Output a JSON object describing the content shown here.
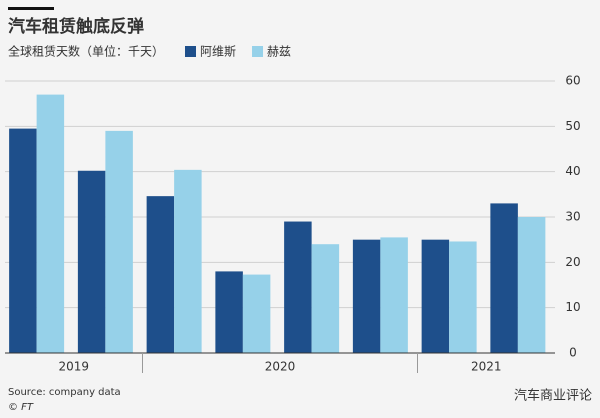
{
  "chart_data": {
    "type": "bar",
    "title": "汽车租赁触底反弹",
    "subtitle": "全球租赁天数（单位：千天）",
    "categories": [
      null,
      null,
      null,
      null,
      null,
      null,
      null,
      null
    ],
    "category_groups": [
      {
        "label": "2019",
        "size": 2
      },
      {
        "label": "2020",
        "size": 4
      },
      {
        "label": "2021",
        "size": 2
      }
    ],
    "series": [
      {
        "name": "阿维斯",
        "color": "#1e4f8b",
        "values": [
          49.5,
          40.2,
          34.6,
          18,
          29,
          25,
          25,
          33
        ]
      },
      {
        "name": "赫兹",
        "color": "#96d1e9",
        "values": [
          57,
          49,
          40.4,
          17.3,
          24,
          25.5,
          24.6,
          30
        ]
      }
    ],
    "ylim": [
      0,
      60
    ],
    "yticks": [
      0,
      10,
      20,
      30,
      40,
      50,
      60
    ],
    "y_axis_side": "right",
    "grid": true,
    "source": "Source: company data",
    "credit": "© FT",
    "watermark": "汽车商业评论"
  }
}
